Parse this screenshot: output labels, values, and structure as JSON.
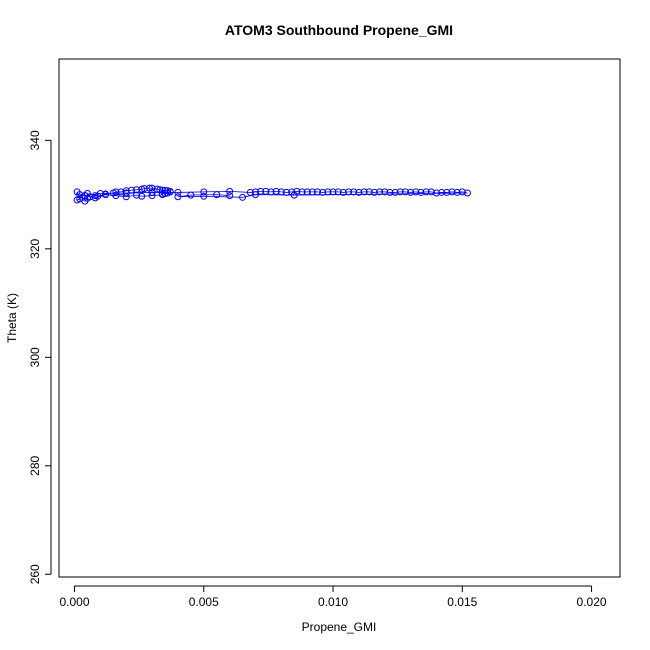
{
  "chart_data": {
    "type": "scatter",
    "title": "ATOM3 Southbound Propene_GMI",
    "xlabel": "Propene_GMI",
    "ylabel": "Theta (K)",
    "xlim": [
      -0.0006,
      0.0211
    ],
    "ylim": [
      259.5,
      355
    ],
    "xticks": [
      0.0,
      0.005,
      0.01,
      0.015,
      0.02
    ],
    "xtick_labels": [
      "0.000",
      "0.005",
      "0.010",
      "0.015",
      "0.020"
    ],
    "yticks": [
      260,
      280,
      300,
      320,
      340
    ],
    "ytick_labels": [
      "260",
      "280",
      "300",
      "320",
      "340"
    ],
    "grid": false,
    "marker": "open-circle",
    "line": true,
    "color": "#0000ff",
    "series": [
      {
        "x": [
          0.0001,
          0.0002,
          0.0001,
          0.0003,
          0.0002,
          0.0004,
          0.0004,
          0.0005,
          0.0005,
          0.0006,
          0.0008,
          0.0009,
          0.0012,
          0.0015,
          0.0016,
          0.0018,
          0.002,
          0.0022,
          0.0024,
          0.0026,
          0.0027,
          0.0029,
          0.003,
          0.0032,
          0.0033,
          0.0034,
          0.0035,
          0.0036,
          0.0037,
          0.0037,
          0.0036,
          0.0035,
          0.0034,
          0.0034,
          0.003,
          0.0026,
          0.0024,
          0.002,
          0.0016,
          0.0012,
          0.0008,
          0.0004,
          0.001,
          0.002,
          0.003,
          0.004,
          0.005,
          0.006,
          0.0068,
          0.007,
          0.0072,
          0.0074,
          0.0076,
          0.0078,
          0.008,
          0.0082,
          0.0084,
          0.0086,
          0.0088,
          0.009,
          0.0092,
          0.0094,
          0.0096,
          0.0098,
          0.01,
          0.0102,
          0.0104,
          0.0106,
          0.0108,
          0.011,
          0.0112,
          0.0114,
          0.0116,
          0.0118,
          0.012,
          0.0122,
          0.0124,
          0.0126,
          0.0128,
          0.013,
          0.0132,
          0.0134,
          0.0136,
          0.0138,
          0.014,
          0.0142,
          0.0144,
          0.0146,
          0.0148,
          0.015,
          0.0152,
          0.0085,
          0.007,
          0.0065,
          0.005,
          0.004,
          0.0045,
          0.0055,
          0.006
        ],
        "y": [
          330.5,
          329.2,
          329.0,
          329.5,
          330.0,
          329.8,
          328.8,
          329.3,
          330.2,
          329.6,
          329.8,
          329.7,
          330.1,
          330.3,
          330.5,
          330.5,
          330.7,
          330.8,
          330.9,
          331.0,
          331.1,
          331.2,
          331.2,
          331.0,
          330.9,
          330.8,
          330.8,
          330.7,
          330.6,
          330.5,
          330.3,
          330.2,
          330.1,
          330.0,
          329.8,
          329.7,
          329.9,
          329.6,
          329.8,
          330.0,
          329.4,
          329.8,
          330.2,
          330.3,
          330.4,
          330.4,
          330.5,
          330.6,
          330.4,
          330.5,
          330.6,
          330.6,
          330.5,
          330.6,
          330.5,
          330.4,
          330.5,
          330.6,
          330.5,
          330.5,
          330.5,
          330.5,
          330.4,
          330.5,
          330.5,
          330.5,
          330.4,
          330.5,
          330.5,
          330.4,
          330.5,
          330.5,
          330.4,
          330.5,
          330.5,
          330.4,
          330.4,
          330.5,
          330.5,
          330.4,
          330.5,
          330.4,
          330.5,
          330.5,
          330.3,
          330.4,
          330.4,
          330.5,
          330.4,
          330.5,
          330.3,
          329.9,
          330.0,
          329.5,
          329.7,
          329.6,
          329.9,
          330.0,
          329.8
        ]
      }
    ]
  }
}
